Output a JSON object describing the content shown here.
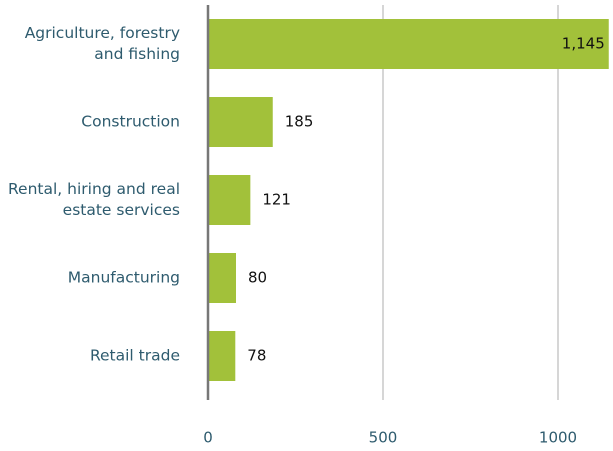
{
  "chart_data": {
    "type": "bar",
    "orientation": "horizontal",
    "categories": [
      "Agriculture, forestry and fishing",
      "Construction",
      "Rental, hiring and real estate services",
      "Manufacturing",
      "Retail trade"
    ],
    "values": [
      1145,
      185,
      121,
      80,
      78
    ],
    "value_labels": [
      "1,145",
      "185",
      "121",
      "80",
      "78"
    ],
    "color": "#a2c13a",
    "xlim": [
      0,
      1150
    ],
    "xticks": [
      0,
      500,
      1000
    ],
    "grid": true
  }
}
